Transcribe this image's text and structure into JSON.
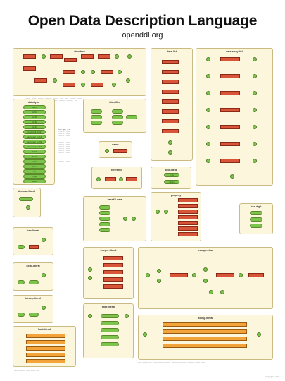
{
  "header": {
    "title": "Open Data Description Language",
    "subtitle": "openddl.org"
  },
  "panels": {
    "structure": "structure",
    "data_list": "data-list",
    "data_array_list": "data-array-list",
    "data_type": "data-type",
    "identifier": "identifier",
    "name": "name",
    "reference": "reference",
    "bool_literal": "bool-literal",
    "property": "property",
    "base64_data": "base64-data",
    "hex_digit": "hex-digit",
    "decimal_literal": "decimal-literal",
    "hex_literal": "hex-literal",
    "octal_literal": "octal-literal",
    "binary_literal": "binary-literal",
    "integer_literal": "integer-literal",
    "float_literal": "float-literal",
    "char_literal": "char-literal",
    "escape_char": "escape-char",
    "string_literal": "string-literal"
  },
  "data_types": [
    "bool",
    "int8",
    "int16",
    "int32",
    "int64",
    "unsigned_int8",
    "unsigned_int16",
    "unsigned_int32",
    "unsigned_int64",
    "half",
    "float",
    "double",
    "string",
    "ref",
    "type",
    "base64"
  ],
  "bool_values": [
    "true",
    "false"
  ],
  "copyright": "Copyright © 2021"
}
